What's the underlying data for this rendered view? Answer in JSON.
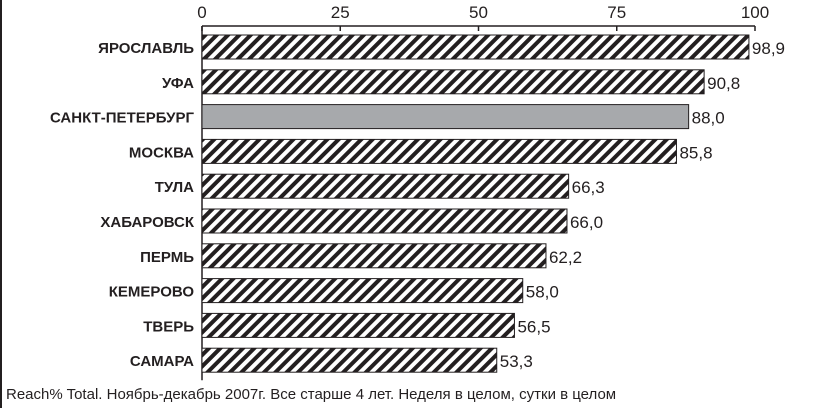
{
  "chart_data": {
    "type": "bar",
    "orientation": "horizontal",
    "categories": [
      "ЯРОСЛАВЛЬ",
      "УФА",
      "САНКТ-ПЕТЕРБУРГ",
      "МОСКВА",
      "ТУЛА",
      "ХАБАРОВСК",
      "ПЕРМЬ",
      "КЕМЕРОВО",
      "ТВЕРЬ",
      "САМАРА"
    ],
    "values": [
      98.9,
      90.8,
      88.0,
      85.8,
      66.3,
      66.0,
      62.2,
      58.0,
      56.5,
      53.3
    ],
    "value_labels": [
      "98,9",
      "90,8",
      "88,0",
      "85,8",
      "66,3",
      "66,0",
      "62,2",
      "58,0",
      "56,5",
      "53,3"
    ],
    "highlighted": "САНКТ-ПЕТЕРБУРГ",
    "xlim": [
      0,
      100
    ],
    "xticks": [
      0,
      25,
      50,
      75,
      100
    ],
    "xtick_labels": [
      "0",
      "25",
      "50",
      "75",
      "100"
    ],
    "axis_position": "top",
    "grid": false,
    "colors": {
      "highlight_fill": "#a7a9ac",
      "hatch": "#231f20",
      "bar_background": "#ffffff",
      "text": "#231f20"
    },
    "footnote": "Reach% Total. Ноябрь-декабрь 2007г. Все старше 4 лет. Неделя в целом, сутки в целом"
  }
}
